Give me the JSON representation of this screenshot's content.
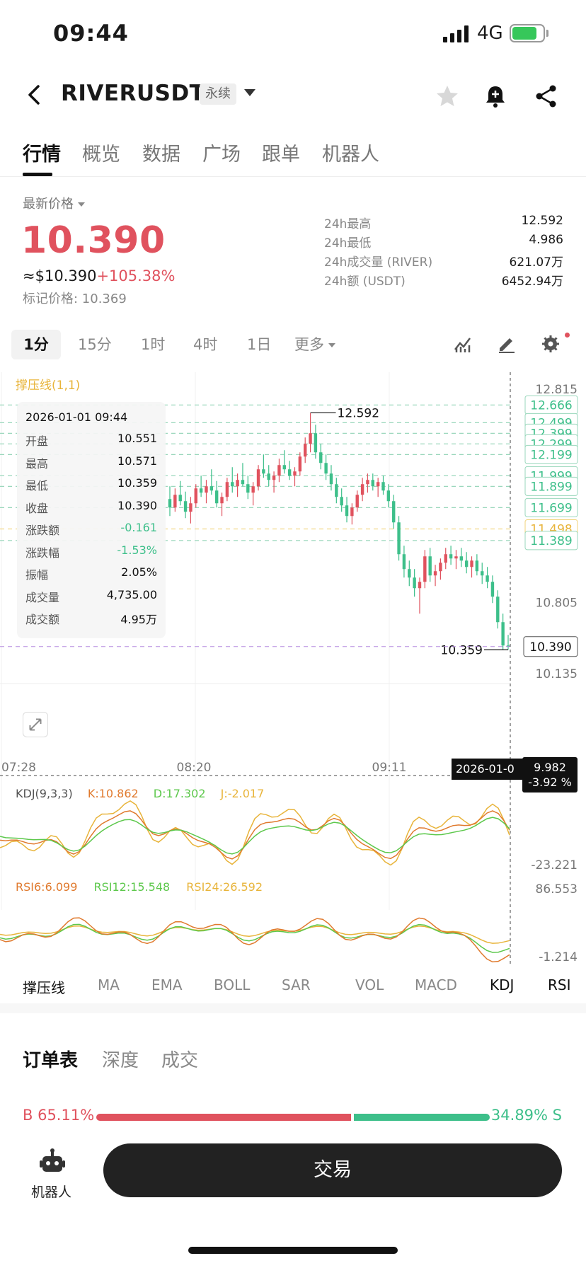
{
  "status_bar": {
    "time": "09:44",
    "network": "4G"
  },
  "header": {
    "symbol": "RIVERUSDT",
    "contract_tag": "永续"
  },
  "tabs": [
    "行情",
    "概览",
    "数据",
    "广场",
    "跟单",
    "机器人"
  ],
  "ticker": {
    "last_label": "最新价格",
    "last_price": "10.390",
    "usd_price": "≈$10.390",
    "change_pct": "+105.38%",
    "mark_price": "标记价格: 10.369",
    "stats": [
      {
        "label": "24h最高",
        "value": "12.592"
      },
      {
        "label": "24h最低",
        "value": "4.986"
      },
      {
        "label": "24h成交量 (RIVER)",
        "value": "621.07万"
      },
      {
        "label": "24h额 (USDT)",
        "value": "6452.94万"
      }
    ]
  },
  "intervals": {
    "items": [
      "1分",
      "15分",
      "1时",
      "4时",
      "1日"
    ],
    "more": "更多",
    "active": "1分"
  },
  "chart_data": {
    "type": "candlestick",
    "overlay_label": "撑压线(1,1)",
    "y_axis_ticks": [
      "12.815",
      "10.805",
      "10.135"
    ],
    "x_axis_ticks": [
      "07:28",
      "08:20",
      "09:11"
    ],
    "level_labels": [
      "12.666",
      "12.499",
      "12.399",
      "12.299",
      "12.199",
      "11.999",
      "11.899",
      "11.699",
      "11.498",
      "11.389"
    ],
    "current_price_label": "10.390",
    "high_marker": "12.592",
    "low_marker": "10.359",
    "crosshair": {
      "time": "2026-01-0",
      "price": "9.982",
      "pct": "-3.92 %"
    },
    "candles_approx": [
      [
        11.78,
        11.9,
        11.62,
        11.7
      ],
      [
        11.7,
        11.88,
        11.66,
        11.82
      ],
      [
        11.82,
        11.95,
        11.72,
        11.76
      ],
      [
        11.76,
        11.85,
        11.6,
        11.66
      ],
      [
        11.66,
        11.8,
        11.55,
        11.74
      ],
      [
        11.74,
        11.92,
        11.7,
        11.88
      ],
      [
        11.88,
        12.0,
        11.8,
        11.84
      ],
      [
        11.84,
        11.96,
        11.74,
        11.9
      ],
      [
        11.9,
        12.06,
        11.82,
        11.86
      ],
      [
        11.86,
        11.95,
        11.7,
        11.74
      ],
      [
        11.74,
        11.84,
        11.62,
        11.8
      ],
      [
        11.8,
        11.98,
        11.76,
        11.94
      ],
      [
        11.94,
        12.08,
        11.84,
        11.9
      ],
      [
        11.9,
        12.02,
        11.8,
        11.96
      ],
      [
        11.96,
        12.12,
        11.9,
        11.92
      ],
      [
        11.92,
        12.0,
        11.78,
        11.84
      ],
      [
        11.84,
        11.94,
        11.72,
        11.9
      ],
      [
        11.9,
        12.1,
        11.86,
        12.06
      ],
      [
        12.06,
        12.2,
        11.98,
        12.02
      ],
      [
        12.02,
        12.1,
        11.9,
        11.96
      ],
      [
        11.96,
        12.04,
        11.84,
        12.0
      ],
      [
        12.0,
        12.16,
        11.94,
        12.1
      ],
      [
        12.1,
        12.24,
        12.02,
        12.06
      ],
      [
        12.06,
        12.14,
        11.96,
        12.0
      ],
      [
        12.0,
        12.08,
        11.9,
        12.04
      ],
      [
        12.04,
        12.22,
        12.0,
        12.18
      ],
      [
        12.18,
        12.36,
        12.12,
        12.3
      ],
      [
        12.3,
        12.59,
        12.22,
        12.4
      ],
      [
        12.4,
        12.48,
        12.16,
        12.22
      ],
      [
        12.22,
        12.3,
        12.06,
        12.12
      ],
      [
        12.12,
        12.2,
        11.96,
        12.02
      ],
      [
        12.02,
        12.1,
        11.86,
        11.92
      ],
      [
        11.92,
        11.98,
        11.74,
        11.8
      ],
      [
        11.8,
        11.88,
        11.66,
        11.72
      ],
      [
        11.72,
        11.8,
        11.56,
        11.62
      ],
      [
        11.62,
        11.74,
        11.54,
        11.7
      ],
      [
        11.7,
        11.86,
        11.66,
        11.82
      ],
      [
        11.82,
        11.98,
        11.76,
        11.92
      ],
      [
        11.92,
        12.02,
        11.84,
        11.96
      ],
      [
        11.96,
        12.02,
        11.86,
        11.9
      ],
      [
        11.9,
        11.98,
        11.8,
        11.94
      ],
      [
        11.94,
        12.0,
        11.82,
        11.86
      ],
      [
        11.86,
        11.92,
        11.7,
        11.76
      ],
      [
        11.76,
        11.82,
        11.5,
        11.56
      ],
      [
        11.56,
        11.62,
        11.2,
        11.26
      ],
      [
        11.26,
        11.34,
        11.04,
        11.12
      ],
      [
        11.12,
        11.2,
        10.96,
        11.04
      ],
      [
        11.04,
        11.12,
        10.86,
        10.94
      ],
      [
        10.94,
        11.04,
        10.7,
        11.0
      ],
      [
        11.0,
        11.3,
        10.94,
        11.24
      ],
      [
        11.24,
        11.32,
        11.0,
        11.06
      ],
      [
        11.06,
        11.16,
        10.96,
        11.1
      ],
      [
        11.1,
        11.22,
        11.02,
        11.18
      ],
      [
        11.18,
        11.32,
        11.12,
        11.26
      ],
      [
        11.26,
        11.34,
        11.16,
        11.22
      ],
      [
        11.22,
        11.3,
        11.12,
        11.24
      ],
      [
        11.24,
        11.32,
        11.14,
        11.2
      ],
      [
        11.2,
        11.28,
        11.08,
        11.14
      ],
      [
        11.14,
        11.24,
        11.04,
        11.2
      ],
      [
        11.2,
        11.26,
        11.06,
        11.1
      ],
      [
        11.1,
        11.18,
        10.98,
        11.06
      ],
      [
        11.06,
        11.14,
        10.94,
        11.0
      ],
      [
        11.0,
        11.06,
        10.8,
        10.86
      ],
      [
        10.86,
        10.92,
        10.56,
        10.62
      ],
      [
        10.62,
        10.7,
        10.36,
        10.4
      ],
      [
        10.4,
        10.5,
        10.36,
        10.39
      ]
    ]
  },
  "ohlc_panel": {
    "time": "2026-01-01 09:44",
    "rows": [
      {
        "k": "开盘",
        "v": "10.551"
      },
      {
        "k": "最高",
        "v": "10.571"
      },
      {
        "k": "最低",
        "v": "10.359"
      },
      {
        "k": "收盘",
        "v": "10.390"
      },
      {
        "k": "涨跌额",
        "v": "-0.161"
      },
      {
        "k": "涨跌幅",
        "v": "-1.53%"
      },
      {
        "k": "振幅",
        "v": "2.05%"
      },
      {
        "k": "成交量",
        "v": "4,735.00"
      },
      {
        "k": "成交额",
        "v": "4.95万"
      }
    ]
  },
  "kdj": {
    "title": "KDJ(9,3,3)",
    "k": "K:10.862",
    "d": "D:17.302",
    "j": "J:-2.017",
    "axis": "-23.221"
  },
  "rsi": {
    "r6": "RSI6:6.099",
    "r12": "RSI12:15.548",
    "r24": "RSI24:26.592",
    "axis_top": "86.553",
    "axis_bottom": "-1.214"
  },
  "indicator_tabs": [
    "撑压线",
    "MA",
    "EMA",
    "BOLL",
    "SAR",
    "VOL",
    "MACD",
    "KDJ",
    "RSI"
  ],
  "order_tabs": [
    "订单表",
    "深度",
    "成交"
  ],
  "ratio": {
    "buy": "B 65.11%",
    "sell": "34.89% S",
    "buy_fraction": 0.6511
  },
  "bottom": {
    "robot_label": "机器人",
    "trade_label": "交易"
  },
  "colors": {
    "up": "#e0525e",
    "down": "#3dbf8a",
    "level": "#3dbf8a",
    "accent": "#e8b43a"
  }
}
